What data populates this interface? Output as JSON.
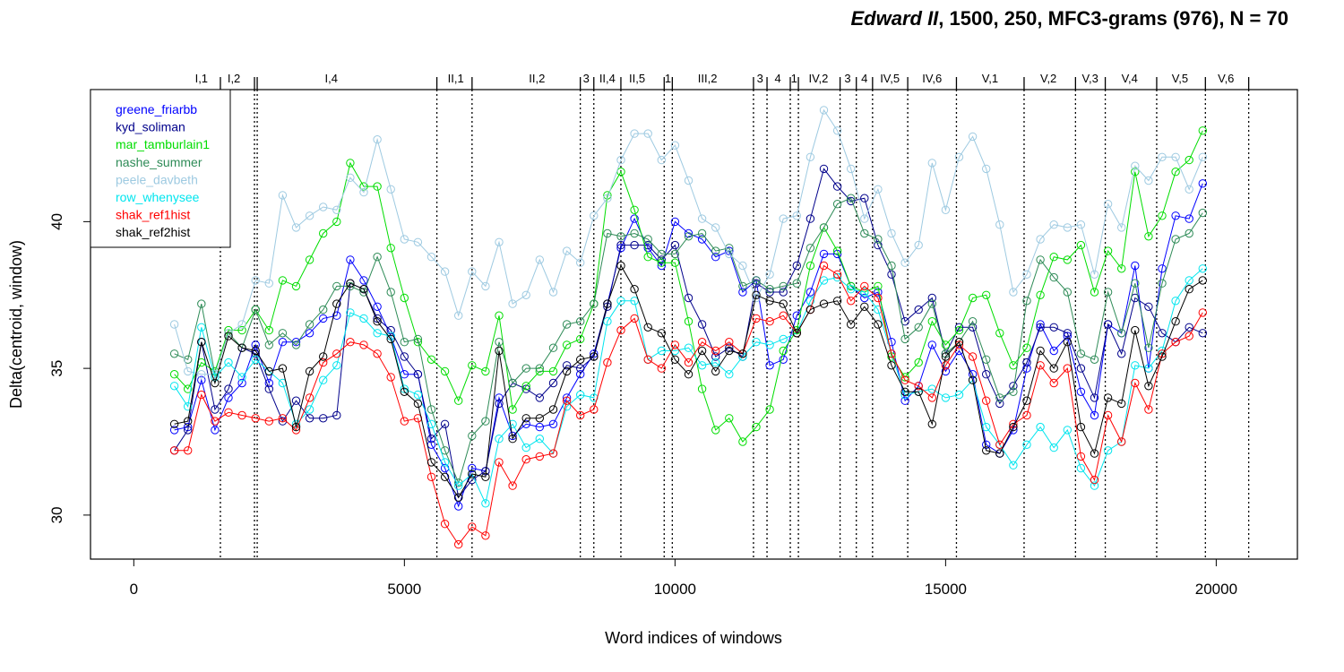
{
  "title": {
    "italic": "Edward II",
    "rest": ", 1500, 250, MFC3-grams (976), N = 70"
  },
  "chart_data": {
    "type": "line",
    "xlabel": "Word indices of windows",
    "ylabel": "Delta(centroid, window)",
    "xlim": [
      -800,
      21500
    ],
    "ylim": [
      28.5,
      44.5
    ],
    "xticks": [
      0,
      5000,
      10000,
      15000,
      20000
    ],
    "yticks": [
      30,
      35,
      40
    ],
    "grid": false,
    "legend_position": "top-left",
    "x": [
      750,
      1000,
      1250,
      1500,
      1750,
      2000,
      2250,
      2500,
      2750,
      3000,
      3250,
      3500,
      3750,
      4000,
      4250,
      4500,
      4750,
      5000,
      5250,
      5500,
      5750,
      6000,
      6250,
      6500,
      6750,
      7000,
      7250,
      7500,
      7750,
      8000,
      8250,
      8500,
      8750,
      9000,
      9250,
      9500,
      9750,
      10000,
      10250,
      10500,
      10750,
      11000,
      11250,
      11500,
      11750,
      12000,
      12250,
      12500,
      12750,
      13000,
      13250,
      13500,
      13750,
      14000,
      14250,
      14500,
      14750,
      15000,
      15250,
      15500,
      15750,
      16000,
      16250,
      16500,
      16750,
      17000,
      17250,
      17500,
      17750,
      18000,
      18250,
      18500,
      18750,
      19000,
      19250,
      19500,
      19750
    ],
    "series": [
      {
        "name": "greene_friarbb",
        "color": "#0000ff",
        "values": [
          32.9,
          33.0,
          34.6,
          32.9,
          34.0,
          34.5,
          35.8,
          34.5,
          35.9,
          35.9,
          36.2,
          36.7,
          36.8,
          38.7,
          38.0,
          37.1,
          36.1,
          34.8,
          34.8,
          32.4,
          31.6,
          30.3,
          31.6,
          31.5,
          34.0,
          32.7,
          33.1,
          33.0,
          33.1,
          34.0,
          34.8,
          35.5,
          37.2,
          39.1,
          40.1,
          39.1,
          38.5,
          40.0,
          39.6,
          39.4,
          38.8,
          39.0,
          37.6,
          38.0,
          35.1,
          35.3,
          36.8,
          37.6,
          38.9,
          38.9,
          37.8,
          37.4,
          37.6,
          35.9,
          33.9,
          34.4,
          35.8,
          34.9,
          35.6,
          34.8,
          32.4,
          32.1,
          32.9,
          35.0,
          36.5,
          35.6,
          36.1,
          34.2,
          33.4,
          36.5,
          36.2,
          38.5,
          35.0,
          38.4,
          40.2,
          40.1,
          41.3
        ]
      },
      {
        "name": "kyd_soliman",
        "color": "#00008b",
        "values": [
          32.2,
          32.9,
          35.9,
          33.6,
          34.3,
          35.7,
          35.5,
          34.3,
          33.2,
          33.9,
          33.3,
          33.3,
          33.4,
          37.9,
          37.7,
          36.7,
          36.3,
          35.4,
          34.8,
          32.6,
          33.1,
          30.6,
          31.2,
          31.5,
          33.8,
          34.5,
          34.3,
          34.0,
          34.5,
          35.1,
          35.0,
          35.4,
          37.1,
          39.2,
          39.2,
          39.2,
          38.7,
          39.2,
          37.4,
          36.5,
          35.4,
          35.7,
          35.4,
          37.9,
          37.6,
          37.6,
          38.5,
          40.1,
          41.8,
          41.2,
          40.7,
          40.8,
          39.2,
          38.2,
          36.6,
          37.0,
          37.4,
          35.5,
          36.4,
          36.4,
          34.8,
          33.8,
          34.4,
          35.2,
          36.4,
          36.4,
          36.2,
          35.0,
          34.0,
          36.5,
          35.5,
          37.4,
          37.1,
          36.2,
          35.9,
          36.4,
          36.2
        ]
      },
      {
        "name": "mar_tamburlain1",
        "color": "#00dd00",
        "values": [
          34.8,
          34.3,
          35.2,
          34.9,
          36.3,
          36.3,
          37.0,
          36.3,
          38.0,
          37.8,
          38.7,
          39.6,
          40.0,
          42.0,
          41.2,
          41.2,
          39.1,
          37.4,
          35.9,
          35.3,
          34.9,
          33.9,
          35.1,
          34.9,
          36.8,
          33.6,
          34.4,
          34.9,
          34.9,
          35.8,
          36.0,
          37.2,
          40.9,
          41.7,
          40.4,
          38.8,
          38.6,
          38.6,
          36.6,
          34.3,
          32.9,
          33.3,
          32.5,
          33.0,
          33.6,
          35.6,
          36.3,
          38.5,
          39.8,
          39.0,
          37.8,
          37.6,
          37.8,
          35.4,
          34.7,
          35.2,
          36.6,
          35.8,
          36.3,
          37.4,
          37.5,
          36.2,
          35.1,
          35.7,
          37.5,
          38.8,
          38.7,
          39.2,
          37.6,
          39.0,
          38.4,
          41.7,
          39.5,
          40.2,
          41.7,
          42.1,
          43.1
        ]
      },
      {
        "name": "nashe_summer",
        "color": "#2e8b57",
        "values": [
          35.5,
          35.3,
          37.2,
          34.8,
          36.2,
          35.7,
          37.0,
          35.8,
          36.2,
          35.8,
          36.5,
          37.0,
          37.8,
          37.8,
          37.6,
          38.8,
          37.6,
          35.9,
          36.0,
          33.6,
          32.2,
          31.1,
          32.7,
          33.2,
          35.9,
          34.5,
          35.0,
          35.0,
          35.7,
          36.5,
          36.6,
          37.2,
          39.6,
          39.5,
          39.6,
          39.4,
          38.9,
          38.9,
          39.5,
          39.6,
          39.0,
          39.1,
          37.8,
          38.0,
          37.7,
          37.8,
          37.9,
          39.1,
          39.8,
          40.6,
          40.8,
          39.6,
          39.4,
          38.5,
          36.0,
          36.4,
          37.2,
          35.5,
          35.9,
          36.6,
          35.3,
          34.0,
          34.2,
          37.3,
          38.7,
          38.1,
          37.6,
          35.5,
          35.3,
          37.6,
          36.2,
          37.9,
          35.7,
          37.9,
          39.4,
          39.6,
          40.3
        ]
      },
      {
        "name": "peele_davbeth",
        "color": "#9ecae1",
        "values": [
          36.5,
          34.9,
          34.8,
          34.8,
          36.2,
          36.5,
          38.0,
          37.9,
          40.9,
          39.8,
          40.2,
          40.5,
          40.4,
          41.5,
          41.0,
          42.8,
          41.1,
          39.4,
          39.3,
          38.8,
          38.3,
          36.8,
          38.3,
          37.8,
          39.3,
          37.2,
          37.5,
          38.7,
          37.6,
          39.0,
          38.6,
          40.2,
          40.8,
          42.1,
          43.0,
          43.0,
          42.1,
          42.6,
          41.4,
          40.1,
          39.8,
          38.9,
          38.5,
          37.4,
          38.2,
          40.1,
          40.2,
          42.2,
          43.8,
          43.1,
          41.8,
          40.1,
          41.1,
          39.6,
          38.6,
          39.2,
          42.0,
          40.4,
          42.2,
          42.9,
          41.8,
          39.9,
          37.6,
          38.2,
          39.4,
          39.9,
          39.8,
          39.9,
          38.2,
          40.6,
          39.8,
          41.9,
          41.4,
          42.2,
          42.2,
          41.1,
          42.2
        ]
      },
      {
        "name": "row_whenysee",
        "color": "#00e5ee",
        "values": [
          34.4,
          33.7,
          36.4,
          34.7,
          35.2,
          34.7,
          35.3,
          34.9,
          34.5,
          33.1,
          33.6,
          34.6,
          35.1,
          36.9,
          36.7,
          36.2,
          36.1,
          34.3,
          34.1,
          33.1,
          31.8,
          31.0,
          31.4,
          30.4,
          32.6,
          33.1,
          32.3,
          32.6,
          32.1,
          33.7,
          34.1,
          34.0,
          36.6,
          37.3,
          37.3,
          35.3,
          35.6,
          35.6,
          35.7,
          35.1,
          35.2,
          34.8,
          35.4,
          35.9,
          35.8,
          36.0,
          36.2,
          37.3,
          38.0,
          38.1,
          37.7,
          37.6,
          37.0,
          35.5,
          34.1,
          34.2,
          34.3,
          34.0,
          34.1,
          34.6,
          33.0,
          32.4,
          31.7,
          32.4,
          33.0,
          32.3,
          32.9,
          31.6,
          31.0,
          32.2,
          32.5,
          35.1,
          35.0,
          35.6,
          37.3,
          38.0,
          38.4
        ]
      },
      {
        "name": "shak_ref1hist",
        "color": "#ff0000",
        "values": [
          32.2,
          32.2,
          34.1,
          33.2,
          33.5,
          33.4,
          33.3,
          33.2,
          33.3,
          32.9,
          34.0,
          35.2,
          35.5,
          35.9,
          35.8,
          35.5,
          34.7,
          33.2,
          33.3,
          31.3,
          29.7,
          29.0,
          29.6,
          29.3,
          31.8,
          31.0,
          31.9,
          32.0,
          32.1,
          33.9,
          33.4,
          33.6,
          35.2,
          36.3,
          36.7,
          35.3,
          35.0,
          35.8,
          35.2,
          35.9,
          35.6,
          35.9,
          35.5,
          36.7,
          36.6,
          36.8,
          36.2,
          37.0,
          38.5,
          38.2,
          37.3,
          37.8,
          37.4,
          35.5,
          34.6,
          34.4,
          34.0,
          35.1,
          35.8,
          35.4,
          33.9,
          32.4,
          33.1,
          33.4,
          35.1,
          34.5,
          35.0,
          32.0,
          31.2,
          33.4,
          32.5,
          34.5,
          33.6,
          35.5,
          35.9,
          36.1,
          36.9
        ]
      },
      {
        "name": "shak_ref2hist",
        "color": "#000000",
        "values": [
          33.1,
          33.2,
          35.9,
          34.5,
          36.1,
          35.7,
          35.6,
          34.9,
          35.0,
          33.0,
          34.9,
          35.4,
          37.2,
          37.9,
          37.7,
          36.6,
          36.0,
          34.2,
          33.8,
          31.8,
          31.3,
          30.6,
          31.4,
          31.3,
          35.6,
          32.6,
          33.3,
          33.3,
          33.6,
          34.9,
          35.3,
          35.4,
          37.2,
          38.5,
          37.7,
          36.4,
          36.2,
          35.3,
          34.8,
          35.6,
          34.9,
          35.6,
          35.5,
          37.5,
          37.3,
          37.2,
          36.2,
          37.0,
          37.2,
          37.3,
          36.5,
          37.1,
          36.5,
          35.1,
          34.2,
          34.2,
          33.1,
          35.4,
          35.9,
          34.6,
          32.2,
          32.1,
          33.0,
          33.9,
          35.6,
          35.0,
          35.9,
          33.0,
          32.1,
          34.0,
          33.8,
          36.3,
          34.4,
          35.4,
          36.6,
          37.7,
          38.0
        ]
      }
    ],
    "acts": {
      "boundaries": [
        1600,
        2230,
        2280,
        5600,
        6250,
        8250,
        8500,
        9000,
        9800,
        9950,
        11450,
        11700,
        12130,
        12280,
        13050,
        13350,
        13650,
        14300,
        15200,
        16450,
        17400,
        17950,
        18900,
        19800,
        20600
      ],
      "labels": [
        {
          "text": "I,1",
          "at": 1250
        },
        {
          "text": "I,2",
          "at": 1850
        },
        {
          "text": "I,4",
          "at": 3650
        },
        {
          "text": "II,1",
          "at": 5950
        },
        {
          "text": "II,2",
          "at": 7450
        },
        {
          "text": "3",
          "at": 8360
        },
        {
          "text": "II,4",
          "at": 8750
        },
        {
          "text": "II,5",
          "at": 9300
        },
        {
          "text": "1",
          "at": 9870
        },
        {
          "text": "III,2",
          "at": 10600
        },
        {
          "text": "3",
          "at": 11570
        },
        {
          "text": "4",
          "at": 11900
        },
        {
          "text": "1",
          "at": 12200
        },
        {
          "text": "IV,2",
          "at": 12650
        },
        {
          "text": "3",
          "at": 13190
        },
        {
          "text": "4",
          "at": 13500
        },
        {
          "text": "IV,5",
          "at": 13970
        },
        {
          "text": "IV,6",
          "at": 14750
        },
        {
          "text": "V,1",
          "at": 15820
        },
        {
          "text": "V,2",
          "at": 16900
        },
        {
          "text": "V,3",
          "at": 17670
        },
        {
          "text": "V,4",
          "at": 18400
        },
        {
          "text": "V,5",
          "at": 19330
        },
        {
          "text": "V,6",
          "at": 20180
        }
      ]
    }
  }
}
